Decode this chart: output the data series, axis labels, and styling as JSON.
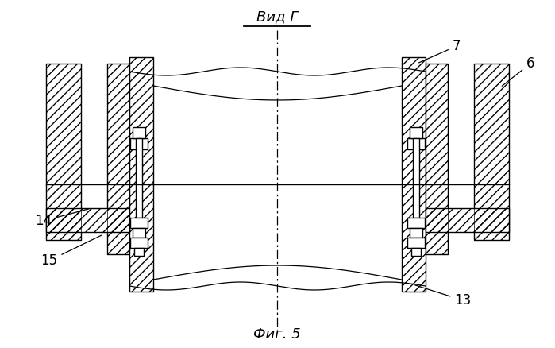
{
  "title": "Вид Г",
  "figure_label": "Фиг. 5",
  "bg": "#ffffff",
  "lc": "#000000"
}
